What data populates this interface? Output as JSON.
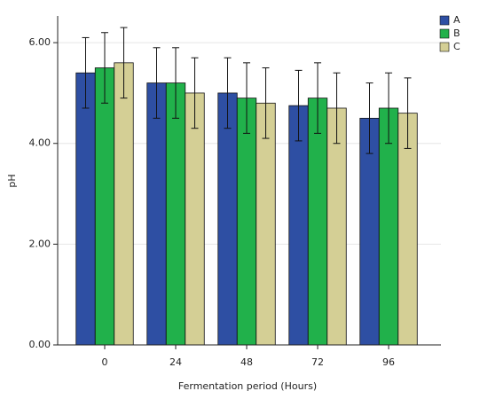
{
  "chart_data": {
    "type": "bar",
    "x_label": "Fermentation period (Hours)",
    "y_label": "pH",
    "categories": [
      "0",
      "24",
      "48",
      "72",
      "96"
    ],
    "series": [
      {
        "name": "A",
        "color": "#2e4fa3",
        "values": [
          5.4,
          5.2,
          5.0,
          4.75,
          4.5
        ],
        "errors": [
          0.7,
          0.7,
          0.7,
          0.7,
          0.7
        ]
      },
      {
        "name": "B",
        "color": "#21b14b",
        "values": [
          5.5,
          5.2,
          4.9,
          4.9,
          4.7
        ],
        "errors": [
          0.7,
          0.7,
          0.7,
          0.7,
          0.7
        ]
      },
      {
        "name": "C",
        "color": "#d4cf95",
        "values": [
          5.6,
          5.0,
          4.8,
          4.7,
          4.6
        ],
        "errors": [
          0.7,
          0.7,
          0.7,
          0.7,
          0.7
        ]
      }
    ],
    "ylim": [
      0,
      6.53
    ],
    "yticks": [
      {
        "value": 0,
        "label": "0.00"
      },
      {
        "value": 2,
        "label": "2.00"
      },
      {
        "value": 4,
        "label": "4.00"
      },
      {
        "value": 6,
        "label": "6.00"
      }
    ],
    "grid": true,
    "legend": "top-right"
  }
}
